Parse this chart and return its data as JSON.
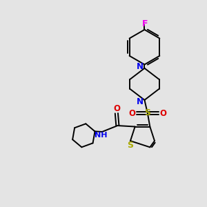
{
  "bg_color": "#e4e4e4",
  "bond_color": "#000000",
  "N_color": "#0000ee",
  "O_color": "#dd0000",
  "S_color": "#aaaa00",
  "F_color": "#ee00ee",
  "lw": 1.4,
  "xlim": [
    0,
    10
  ],
  "ylim": [
    0,
    10
  ]
}
